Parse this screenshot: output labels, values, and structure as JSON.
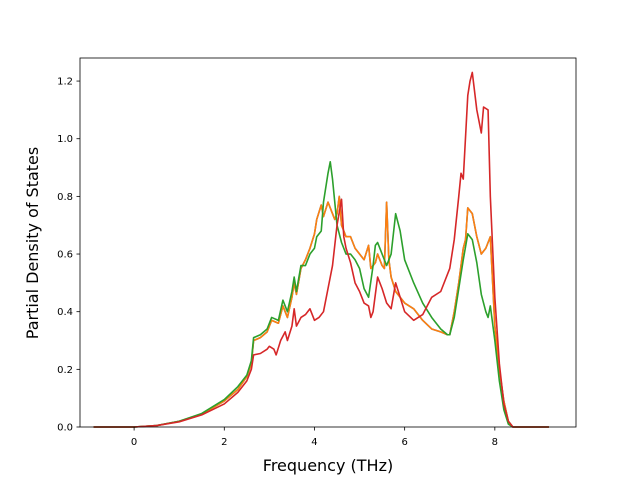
{
  "chart_data": {
    "type": "line",
    "title": "",
    "xlabel": "Frequency (THz)",
    "ylabel": "Partial Density of States",
    "xlim": [
      -1.2,
      9.8
    ],
    "ylim": [
      0.0,
      1.28
    ],
    "xticks": [
      0,
      2,
      4,
      6,
      8
    ],
    "xtick_labels": [
      "0",
      "2",
      "4",
      "6",
      "8"
    ],
    "yticks": [
      0.0,
      0.2,
      0.4,
      0.6,
      0.8,
      1.0,
      1.2
    ],
    "ytick_labels": [
      "0.0",
      "0.2",
      "0.4",
      "0.6",
      "0.8",
      "1.0",
      "1.2"
    ],
    "grid": false,
    "legend": "none",
    "series": [
      {
        "color": "#1f77b4",
        "points": [
          [
            -0.9,
            0
          ],
          [
            0,
            0
          ],
          [
            0.5,
            0.005
          ],
          [
            1.0,
            0.02
          ],
          [
            1.5,
            0.045
          ],
          [
            2.0,
            0.09
          ],
          [
            2.3,
            0.13
          ],
          [
            2.5,
            0.175
          ],
          [
            2.6,
            0.22
          ],
          [
            2.65,
            0.3
          ],
          [
            2.8,
            0.31
          ],
          [
            2.95,
            0.33
          ],
          [
            3.05,
            0.37
          ],
          [
            3.2,
            0.36
          ],
          [
            3.3,
            0.42
          ],
          [
            3.4,
            0.38
          ],
          [
            3.5,
            0.45
          ],
          [
            3.55,
            0.5
          ],
          [
            3.6,
            0.46
          ],
          [
            3.7,
            0.55
          ],
          [
            3.8,
            0.58
          ],
          [
            3.9,
            0.62
          ],
          [
            4.0,
            0.67
          ],
          [
            4.05,
            0.72
          ],
          [
            4.15,
            0.77
          ],
          [
            4.2,
            0.73
          ],
          [
            4.3,
            0.78
          ],
          [
            4.4,
            0.74
          ],
          [
            4.45,
            0.72
          ],
          [
            4.5,
            0.74
          ],
          [
            4.55,
            0.8
          ],
          [
            4.6,
            0.7
          ],
          [
            4.7,
            0.66
          ],
          [
            4.8,
            0.66
          ],
          [
            4.9,
            0.62
          ],
          [
            5.0,
            0.6
          ],
          [
            5.1,
            0.58
          ],
          [
            5.2,
            0.63
          ],
          [
            5.25,
            0.55
          ],
          [
            5.35,
            0.57
          ],
          [
            5.4,
            0.6
          ],
          [
            5.5,
            0.56
          ],
          [
            5.55,
            0.55
          ],
          [
            5.6,
            0.78
          ],
          [
            5.65,
            0.58
          ],
          [
            5.7,
            0.52
          ],
          [
            5.8,
            0.47
          ],
          [
            5.9,
            0.45
          ],
          [
            6.0,
            0.43
          ],
          [
            6.2,
            0.41
          ],
          [
            6.4,
            0.37
          ],
          [
            6.6,
            0.34
          ],
          [
            6.8,
            0.33
          ],
          [
            6.95,
            0.32
          ],
          [
            7.0,
            0.32
          ],
          [
            7.1,
            0.4
          ],
          [
            7.2,
            0.5
          ],
          [
            7.3,
            0.62
          ],
          [
            7.35,
            0.65
          ],
          [
            7.4,
            0.76
          ],
          [
            7.5,
            0.74
          ],
          [
            7.6,
            0.66
          ],
          [
            7.7,
            0.6
          ],
          [
            7.8,
            0.62
          ],
          [
            7.85,
            0.64
          ],
          [
            7.9,
            0.66
          ],
          [
            8.0,
            0.35
          ],
          [
            8.1,
            0.2
          ],
          [
            8.2,
            0.09
          ],
          [
            8.3,
            0.02
          ],
          [
            8.4,
            0.0
          ],
          [
            9.2,
            0.0
          ]
        ]
      },
      {
        "color": "#ff7f0e",
        "points": [
          [
            -0.9,
            0
          ],
          [
            0,
            0
          ],
          [
            0.5,
            0.005
          ],
          [
            1.0,
            0.02
          ],
          [
            1.5,
            0.045
          ],
          [
            2.0,
            0.09
          ],
          [
            2.3,
            0.13
          ],
          [
            2.5,
            0.175
          ],
          [
            2.6,
            0.22
          ],
          [
            2.65,
            0.3
          ],
          [
            2.8,
            0.31
          ],
          [
            2.95,
            0.33
          ],
          [
            3.05,
            0.37
          ],
          [
            3.2,
            0.36
          ],
          [
            3.3,
            0.42
          ],
          [
            3.4,
            0.38
          ],
          [
            3.5,
            0.45
          ],
          [
            3.55,
            0.5
          ],
          [
            3.6,
            0.46
          ],
          [
            3.7,
            0.55
          ],
          [
            3.8,
            0.58
          ],
          [
            3.9,
            0.62
          ],
          [
            4.0,
            0.67
          ],
          [
            4.05,
            0.72
          ],
          [
            4.15,
            0.77
          ],
          [
            4.2,
            0.73
          ],
          [
            4.3,
            0.78
          ],
          [
            4.4,
            0.74
          ],
          [
            4.45,
            0.72
          ],
          [
            4.5,
            0.74
          ],
          [
            4.55,
            0.8
          ],
          [
            4.6,
            0.7
          ],
          [
            4.7,
            0.66
          ],
          [
            4.8,
            0.66
          ],
          [
            4.9,
            0.62
          ],
          [
            5.0,
            0.6
          ],
          [
            5.1,
            0.58
          ],
          [
            5.2,
            0.63
          ],
          [
            5.25,
            0.55
          ],
          [
            5.35,
            0.57
          ],
          [
            5.4,
            0.6
          ],
          [
            5.5,
            0.56
          ],
          [
            5.55,
            0.55
          ],
          [
            5.6,
            0.78
          ],
          [
            5.65,
            0.58
          ],
          [
            5.7,
            0.52
          ],
          [
            5.8,
            0.47
          ],
          [
            5.9,
            0.45
          ],
          [
            6.0,
            0.43
          ],
          [
            6.2,
            0.41
          ],
          [
            6.4,
            0.37
          ],
          [
            6.6,
            0.34
          ],
          [
            6.8,
            0.33
          ],
          [
            6.95,
            0.32
          ],
          [
            7.0,
            0.32
          ],
          [
            7.1,
            0.4
          ],
          [
            7.2,
            0.5
          ],
          [
            7.3,
            0.62
          ],
          [
            7.35,
            0.65
          ],
          [
            7.4,
            0.76
          ],
          [
            7.5,
            0.74
          ],
          [
            7.6,
            0.66
          ],
          [
            7.7,
            0.6
          ],
          [
            7.8,
            0.62
          ],
          [
            7.85,
            0.64
          ],
          [
            7.9,
            0.66
          ],
          [
            8.0,
            0.35
          ],
          [
            8.1,
            0.2
          ],
          [
            8.2,
            0.09
          ],
          [
            8.3,
            0.02
          ],
          [
            8.4,
            0.0
          ],
          [
            9.2,
            0.0
          ]
        ]
      },
      {
        "color": "#2ca02c",
        "points": [
          [
            -0.9,
            0
          ],
          [
            0,
            0
          ],
          [
            0.5,
            0.005
          ],
          [
            1.0,
            0.02
          ],
          [
            1.5,
            0.047
          ],
          [
            2.0,
            0.095
          ],
          [
            2.3,
            0.14
          ],
          [
            2.5,
            0.18
          ],
          [
            2.6,
            0.23
          ],
          [
            2.65,
            0.31
          ],
          [
            2.8,
            0.32
          ],
          [
            2.95,
            0.34
          ],
          [
            3.05,
            0.38
          ],
          [
            3.2,
            0.37
          ],
          [
            3.3,
            0.44
          ],
          [
            3.4,
            0.4
          ],
          [
            3.5,
            0.47
          ],
          [
            3.55,
            0.52
          ],
          [
            3.6,
            0.47
          ],
          [
            3.7,
            0.56
          ],
          [
            3.8,
            0.56
          ],
          [
            3.9,
            0.6
          ],
          [
            4.0,
            0.62
          ],
          [
            4.05,
            0.66
          ],
          [
            4.15,
            0.68
          ],
          [
            4.2,
            0.78
          ],
          [
            4.3,
            0.88
          ],
          [
            4.35,
            0.92
          ],
          [
            4.4,
            0.86
          ],
          [
            4.5,
            0.7
          ],
          [
            4.55,
            0.67
          ],
          [
            4.6,
            0.64
          ],
          [
            4.7,
            0.6
          ],
          [
            4.8,
            0.6
          ],
          [
            4.9,
            0.58
          ],
          [
            5.0,
            0.55
          ],
          [
            5.1,
            0.48
          ],
          [
            5.2,
            0.45
          ],
          [
            5.3,
            0.56
          ],
          [
            5.35,
            0.63
          ],
          [
            5.4,
            0.64
          ],
          [
            5.5,
            0.6
          ],
          [
            5.6,
            0.56
          ],
          [
            5.7,
            0.6
          ],
          [
            5.8,
            0.74
          ],
          [
            5.9,
            0.68
          ],
          [
            6.0,
            0.58
          ],
          [
            6.2,
            0.5
          ],
          [
            6.4,
            0.43
          ],
          [
            6.6,
            0.38
          ],
          [
            6.8,
            0.34
          ],
          [
            6.95,
            0.32
          ],
          [
            7.0,
            0.32
          ],
          [
            7.1,
            0.38
          ],
          [
            7.2,
            0.48
          ],
          [
            7.3,
            0.58
          ],
          [
            7.4,
            0.67
          ],
          [
            7.5,
            0.65
          ],
          [
            7.6,
            0.57
          ],
          [
            7.7,
            0.46
          ],
          [
            7.8,
            0.4
          ],
          [
            7.85,
            0.38
          ],
          [
            7.9,
            0.42
          ],
          [
            8.0,
            0.3
          ],
          [
            8.1,
            0.16
          ],
          [
            8.2,
            0.06
          ],
          [
            8.3,
            0.01
          ],
          [
            8.4,
            0.0
          ],
          [
            9.2,
            0.0
          ]
        ]
      },
      {
        "color": "#d62728",
        "points": [
          [
            -0.9,
            0
          ],
          [
            0,
            0
          ],
          [
            0.5,
            0.005
          ],
          [
            1.0,
            0.018
          ],
          [
            1.5,
            0.042
          ],
          [
            2.0,
            0.08
          ],
          [
            2.3,
            0.12
          ],
          [
            2.5,
            0.16
          ],
          [
            2.6,
            0.2
          ],
          [
            2.65,
            0.25
          ],
          [
            2.8,
            0.255
          ],
          [
            2.95,
            0.27
          ],
          [
            3.0,
            0.28
          ],
          [
            3.1,
            0.27
          ],
          [
            3.15,
            0.25
          ],
          [
            3.25,
            0.3
          ],
          [
            3.35,
            0.33
          ],
          [
            3.4,
            0.3
          ],
          [
            3.5,
            0.35
          ],
          [
            3.55,
            0.41
          ],
          [
            3.6,
            0.35
          ],
          [
            3.7,
            0.38
          ],
          [
            3.8,
            0.39
          ],
          [
            3.9,
            0.41
          ],
          [
            4.0,
            0.37
          ],
          [
            4.1,
            0.38
          ],
          [
            4.2,
            0.4
          ],
          [
            4.3,
            0.48
          ],
          [
            4.4,
            0.56
          ],
          [
            4.5,
            0.7
          ],
          [
            4.6,
            0.79
          ],
          [
            4.65,
            0.66
          ],
          [
            4.7,
            0.62
          ],
          [
            4.8,
            0.57
          ],
          [
            4.9,
            0.5
          ],
          [
            5.0,
            0.47
          ],
          [
            5.1,
            0.43
          ],
          [
            5.2,
            0.42
          ],
          [
            5.25,
            0.38
          ],
          [
            5.3,
            0.4
          ],
          [
            5.4,
            0.52
          ],
          [
            5.5,
            0.48
          ],
          [
            5.6,
            0.43
          ],
          [
            5.7,
            0.41
          ],
          [
            5.8,
            0.5
          ],
          [
            5.9,
            0.45
          ],
          [
            6.0,
            0.4
          ],
          [
            6.2,
            0.37
          ],
          [
            6.4,
            0.39
          ],
          [
            6.6,
            0.45
          ],
          [
            6.8,
            0.47
          ],
          [
            7.0,
            0.55
          ],
          [
            7.1,
            0.65
          ],
          [
            7.2,
            0.8
          ],
          [
            7.25,
            0.88
          ],
          [
            7.3,
            0.86
          ],
          [
            7.4,
            1.15
          ],
          [
            7.45,
            1.2
          ],
          [
            7.5,
            1.23
          ],
          [
            7.6,
            1.1
          ],
          [
            7.7,
            1.02
          ],
          [
            7.75,
            1.11
          ],
          [
            7.85,
            1.1
          ],
          [
            7.9,
            0.8
          ],
          [
            8.0,
            0.45
          ],
          [
            8.1,
            0.22
          ],
          [
            8.2,
            0.08
          ],
          [
            8.3,
            0.02
          ],
          [
            8.4,
            0.0
          ],
          [
            9.2,
            0.0
          ]
        ]
      }
    ]
  }
}
